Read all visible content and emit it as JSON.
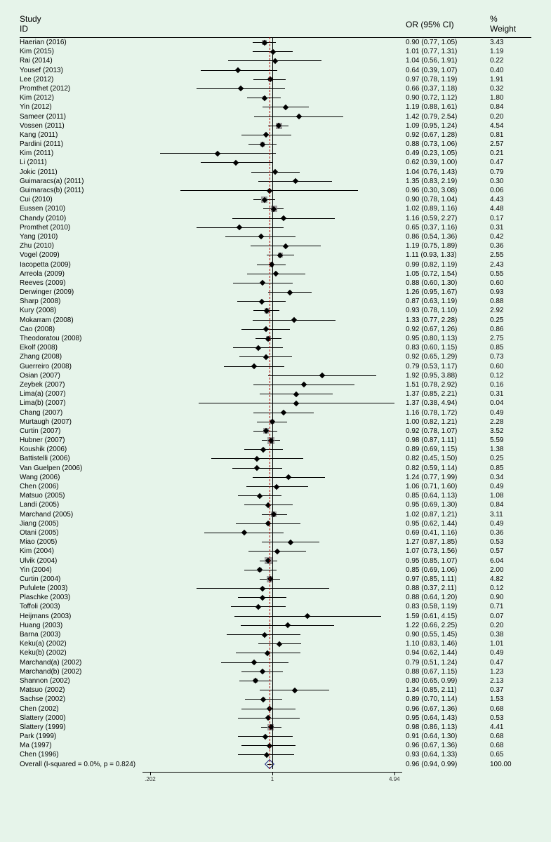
{
  "title": {
    "study": "Study\nID",
    "orc": "OR (95% CI)",
    "wt": "%\nWeight"
  },
  "axis": {
    "min_ln": -1.7,
    "max_ln": 1.7,
    "ticks": [
      {
        "v": 0.202,
        "l": ".202"
      },
      {
        "v": 1,
        "l": "1"
      },
      {
        "v": 4.94,
        "l": "4.94"
      }
    ],
    "ref": 1,
    "overall": 0.96
  },
  "box_scale": 4.2,
  "colors": {
    "bg": "#e6f4ea",
    "box": "#9e9e9e",
    "line": "#000",
    "diamond": "#1a237e",
    "overall_line": "#b00000"
  },
  "rows": [
    {
      "n": "Haerian (2016)",
      "or": 0.9,
      "lo": 0.77,
      "hi": 1.05,
      "w": 3.43
    },
    {
      "n": "Kim (2015)",
      "or": 1.01,
      "lo": 0.77,
      "hi": 1.31,
      "w": 1.19
    },
    {
      "n": "Rai (2014)",
      "or": 1.04,
      "lo": 0.56,
      "hi": 1.91,
      "w": 0.22
    },
    {
      "n": "Yousef (2013)",
      "or": 0.64,
      "lo": 0.39,
      "hi": 1.07,
      "w": 0.4
    },
    {
      "n": "Lee (2012)",
      "or": 0.97,
      "lo": 0.78,
      "hi": 1.19,
      "w": 1.91
    },
    {
      "n": "Promthet (2012)",
      "or": 0.66,
      "lo": 0.37,
      "hi": 1.18,
      "w": 0.32
    },
    {
      "n": "Kim (2012)",
      "or": 0.9,
      "lo": 0.72,
      "hi": 1.12,
      "w": 1.8
    },
    {
      "n": "Yin (2012)",
      "or": 1.19,
      "lo": 0.88,
      "hi": 1.61,
      "w": 0.84
    },
    {
      "n": "Sameer (2011)",
      "or": 1.42,
      "lo": 0.79,
      "hi": 2.54,
      "w": 0.2
    },
    {
      "n": "Vossen (2011)",
      "or": 1.09,
      "lo": 0.95,
      "hi": 1.24,
      "w": 4.54
    },
    {
      "n": "Kang (2011)",
      "or": 0.92,
      "lo": 0.67,
      "hi": 1.28,
      "w": 0.81
    },
    {
      "n": "Pardini (2011)",
      "or": 0.88,
      "lo": 0.73,
      "hi": 1.06,
      "w": 2.57
    },
    {
      "n": "Kim (2011)",
      "or": 0.49,
      "lo": 0.23,
      "hi": 1.05,
      "w": 0.21
    },
    {
      "n": "Li (2011)",
      "or": 0.62,
      "lo": 0.39,
      "hi": 1.0,
      "w": 0.47
    },
    {
      "n": "Jokic (2011)",
      "or": 1.04,
      "lo": 0.76,
      "hi": 1.43,
      "w": 0.79
    },
    {
      "n": "Guimaracs(a) (2011)",
      "or": 1.35,
      "lo": 0.83,
      "hi": 2.19,
      "w": 0.3
    },
    {
      "n": "Guimaracs(b) (2011)",
      "or": 0.96,
      "lo": 0.3,
      "hi": 3.08,
      "w": 0.06
    },
    {
      "n": "Cui (2010)",
      "or": 0.9,
      "lo": 0.78,
      "hi": 1.04,
      "w": 4.43
    },
    {
      "n": "Eussen (2010)",
      "or": 1.02,
      "lo": 0.89,
      "hi": 1.16,
      "w": 4.48
    },
    {
      "n": "Chandy (2010)",
      "or": 1.16,
      "lo": 0.59,
      "hi": 2.27,
      "w": 0.17
    },
    {
      "n": "Promthet (2010)",
      "or": 0.65,
      "lo": 0.37,
      "hi": 1.16,
      "w": 0.31
    },
    {
      "n": "Yang  (2010)",
      "or": 0.86,
      "lo": 0.54,
      "hi": 1.36,
      "w": 0.42
    },
    {
      "n": "Zhu (2010)",
      "or": 1.19,
      "lo": 0.75,
      "hi": 1.89,
      "w": 0.36
    },
    {
      "n": "Vogel (2009)",
      "or": 1.11,
      "lo": 0.93,
      "hi": 1.33,
      "w": 2.55
    },
    {
      "n": "Iacopetta (2009)",
      "or": 0.99,
      "lo": 0.82,
      "hi": 1.19,
      "w": 2.43
    },
    {
      "n": "Arreola (2009)",
      "or": 1.05,
      "lo": 0.72,
      "hi": 1.54,
      "w": 0.55
    },
    {
      "n": "Reeves (2009)",
      "or": 0.88,
      "lo": 0.6,
      "hi": 1.3,
      "w": 0.6
    },
    {
      "n": "Derwinger (2009)",
      "or": 1.26,
      "lo": 0.95,
      "hi": 1.67,
      "w": 0.93
    },
    {
      "n": "Sharp (2008)",
      "or": 0.87,
      "lo": 0.63,
      "hi": 1.19,
      "w": 0.88
    },
    {
      "n": "Kury (2008)",
      "or": 0.93,
      "lo": 0.78,
      "hi": 1.1,
      "w": 2.92
    },
    {
      "n": "Mokarram (2008)",
      "or": 1.33,
      "lo": 0.77,
      "hi": 2.28,
      "w": 0.25
    },
    {
      "n": "Cao (2008)",
      "or": 0.92,
      "lo": 0.67,
      "hi": 1.26,
      "w": 0.86
    },
    {
      "n": "Theodoratou (2008)",
      "or": 0.95,
      "lo": 0.8,
      "hi": 1.13,
      "w": 2.75
    },
    {
      "n": "Ekolf (2008)",
      "or": 0.83,
      "lo": 0.6,
      "hi": 1.15,
      "w": 0.85
    },
    {
      "n": "Zhang (2008)",
      "or": 0.92,
      "lo": 0.65,
      "hi": 1.29,
      "w": 0.73
    },
    {
      "n": "Guerreiro (2008)",
      "or": 0.79,
      "lo": 0.53,
      "hi": 1.17,
      "w": 0.6
    },
    {
      "n": "Osian (2007)",
      "or": 1.92,
      "lo": 0.95,
      "hi": 3.88,
      "w": 0.12
    },
    {
      "n": "Zeybek (2007)",
      "or": 1.51,
      "lo": 0.78,
      "hi": 2.92,
      "w": 0.16
    },
    {
      "n": "Lima(a) (2007)",
      "or": 1.37,
      "lo": 0.85,
      "hi": 2.21,
      "w": 0.31
    },
    {
      "n": "Lima(b) (2007)",
      "or": 1.37,
      "lo": 0.38,
      "hi": 4.94,
      "w": 0.04
    },
    {
      "n": "Chang (2007)",
      "or": 1.16,
      "lo": 0.78,
      "hi": 1.72,
      "w": 0.49
    },
    {
      "n": "Murtaugh (2007)",
      "or": 1.0,
      "lo": 0.82,
      "hi": 1.21,
      "w": 2.28
    },
    {
      "n": "Curtin (2007)",
      "or": 0.92,
      "lo": 0.78,
      "hi": 1.07,
      "w": 3.52
    },
    {
      "n": "Hubner (2007)",
      "or": 0.98,
      "lo": 0.87,
      "hi": 1.11,
      "w": 5.59
    },
    {
      "n": "Koushik (2006)",
      "or": 0.89,
      "lo": 0.69,
      "hi": 1.15,
      "w": 1.38
    },
    {
      "n": "Battistelli (2006)",
      "or": 0.82,
      "lo": 0.45,
      "hi": 1.5,
      "w": 0.25
    },
    {
      "n": "Van Guelpen (2006)",
      "or": 0.82,
      "lo": 0.59,
      "hi": 1.14,
      "w": 0.85
    },
    {
      "n": "Wang (2006)",
      "or": 1.24,
      "lo": 0.77,
      "hi": 1.99,
      "w": 0.34
    },
    {
      "n": "Chen (2006)",
      "or": 1.06,
      "lo": 0.71,
      "hi": 1.6,
      "w": 0.49
    },
    {
      "n": "Matsuo (2005)",
      "or": 0.85,
      "lo": 0.64,
      "hi": 1.13,
      "w": 1.08
    },
    {
      "n": "Landi (2005)",
      "or": 0.95,
      "lo": 0.69,
      "hi": 1.3,
      "w": 0.84
    },
    {
      "n": "Marchand (2005)",
      "or": 1.02,
      "lo": 0.87,
      "hi": 1.21,
      "w": 3.11
    },
    {
      "n": "Jiang (2005)",
      "or": 0.95,
      "lo": 0.62,
      "hi": 1.44,
      "w": 0.49
    },
    {
      "n": "Otani (2005)",
      "or": 0.69,
      "lo": 0.41,
      "hi": 1.16,
      "w": 0.36
    },
    {
      "n": "Miao (2005)",
      "or": 1.27,
      "lo": 0.87,
      "hi": 1.85,
      "w": 0.53
    },
    {
      "n": "Kim (2004)",
      "or": 1.07,
      "lo": 0.73,
      "hi": 1.56,
      "w": 0.57
    },
    {
      "n": "Ulvik (2004)",
      "or": 0.95,
      "lo": 0.85,
      "hi": 1.07,
      "w": 6.04
    },
    {
      "n": "Yin (2004)",
      "or": 0.85,
      "lo": 0.69,
      "hi": 1.06,
      "w": 2.0
    },
    {
      "n": "Curtin (2004)",
      "or": 0.97,
      "lo": 0.85,
      "hi": 1.11,
      "w": 4.82
    },
    {
      "n": "Pufulete (2003)",
      "or": 0.88,
      "lo": 0.37,
      "hi": 2.11,
      "w": 0.12
    },
    {
      "n": "Plaschke (2003)",
      "or": 0.88,
      "lo": 0.64,
      "hi": 1.2,
      "w": 0.9
    },
    {
      "n": "Toffoli (2003)",
      "or": 0.83,
      "lo": 0.58,
      "hi": 1.19,
      "w": 0.71
    },
    {
      "n": "Heijmans (2003)",
      "or": 1.59,
      "lo": 0.61,
      "hi": 4.15,
      "w": 0.07
    },
    {
      "n": "Huang (2003)",
      "or": 1.22,
      "lo": 0.66,
      "hi": 2.25,
      "w": 0.2
    },
    {
      "n": "Barna (2003)",
      "or": 0.9,
      "lo": 0.55,
      "hi": 1.45,
      "w": 0.38
    },
    {
      "n": "Keku(a) (2002)",
      "or": 1.1,
      "lo": 0.83,
      "hi": 1.46,
      "w": 1.01
    },
    {
      "n": "Keku(b) (2002)",
      "or": 0.94,
      "lo": 0.62,
      "hi": 1.44,
      "w": 0.49
    },
    {
      "n": "Marchand(a) (2002)",
      "or": 0.79,
      "lo": 0.51,
      "hi": 1.24,
      "w": 0.47
    },
    {
      "n": "Marchand(b) (2002)",
      "or": 0.88,
      "lo": 0.67,
      "hi": 1.15,
      "w": 1.23
    },
    {
      "n": "Shannon (2002)",
      "or": 0.8,
      "lo": 0.65,
      "hi": 0.99,
      "w": 2.13
    },
    {
      "n": "Matsuo (2002)",
      "or": 1.34,
      "lo": 0.85,
      "hi": 2.11,
      "w": 0.37
    },
    {
      "n": "Sachse (2002)",
      "or": 0.89,
      "lo": 0.7,
      "hi": 1.14,
      "w": 1.53
    },
    {
      "n": "Chen (2002)",
      "or": 0.96,
      "lo": 0.67,
      "hi": 1.36,
      "w": 0.68
    },
    {
      "n": "Slattery (2000)",
      "or": 0.95,
      "lo": 0.64,
      "hi": 1.43,
      "w": 0.53
    },
    {
      "n": "Slattery (1999)",
      "or": 0.98,
      "lo": 0.86,
      "hi": 1.13,
      "w": 4.41
    },
    {
      "n": "Park (1999)",
      "or": 0.91,
      "lo": 0.64,
      "hi": 1.3,
      "w": 0.68
    },
    {
      "n": "Ma (1997)",
      "or": 0.96,
      "lo": 0.67,
      "hi": 1.36,
      "w": 0.68
    },
    {
      "n": "Chen (1996)",
      "or": 0.93,
      "lo": 0.64,
      "hi": 1.33,
      "w": 0.65
    },
    {
      "n": "Overall  (I-squared = 0.0%, p = 0.824)",
      "or": 0.96,
      "lo": 0.94,
      "hi": 0.99,
      "w": 100.0,
      "summary": true
    }
  ]
}
